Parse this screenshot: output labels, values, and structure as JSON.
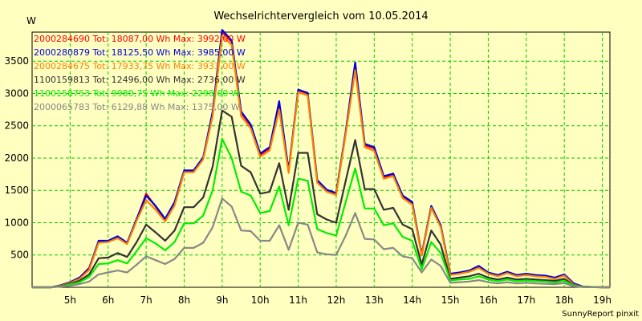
{
  "chart_data": {
    "type": "line",
    "title": "Wechselrichtervergleich vom 10.05.2014",
    "ylabel": "W",
    "xlabel": "",
    "footer": "SunnyReport pinxit",
    "grid": true,
    "legend_position": "top-left",
    "xlim": [
      4.0,
      19.2
    ],
    "ylim": [
      0,
      3950
    ],
    "x_ticks": [
      5,
      6,
      7,
      8,
      9,
      10,
      11,
      12,
      13,
      14,
      15,
      16,
      17,
      18,
      19
    ],
    "x_tick_labels": [
      "5h",
      "6h",
      "7h",
      "8h",
      "9h",
      "10h",
      "11h",
      "12h",
      "13h",
      "14h",
      "15h",
      "16h",
      "17h",
      "18h",
      "19h"
    ],
    "y_ticks": [
      500,
      1000,
      1500,
      2000,
      2500,
      3000,
      3500
    ],
    "x": [
      4.0,
      4.5,
      4.75,
      5.0,
      5.25,
      5.5,
      5.75,
      6.0,
      6.25,
      6.5,
      6.75,
      7.0,
      7.25,
      7.5,
      7.75,
      8.0,
      8.25,
      8.5,
      8.75,
      9.0,
      9.25,
      9.5,
      9.75,
      10.0,
      10.25,
      10.5,
      10.75,
      11.0,
      11.25,
      11.5,
      11.75,
      12.0,
      12.25,
      12.5,
      12.75,
      13.0,
      13.25,
      13.5,
      13.75,
      14.0,
      14.25,
      14.5,
      14.75,
      15.0,
      15.25,
      15.5,
      15.75,
      16.0,
      16.25,
      16.5,
      16.75,
      17.0,
      17.25,
      17.5,
      17.75,
      18.0,
      18.25,
      18.5,
      19.0,
      19.2
    ],
    "series": [
      {
        "name": "2000284690 Tot: 18087,00 Wh Max: 3992,00 W",
        "color": "#ff0000",
        "values": [
          0,
          0,
          30,
          80,
          150,
          300,
          700,
          710,
          780,
          680,
          1050,
          1450,
          1250,
          1050,
          1300,
          1800,
          1800,
          2000,
          2700,
          3950,
          3800,
          2700,
          2500,
          2050,
          2150,
          2800,
          1800,
          3050,
          3000,
          1650,
          1500,
          1450,
          2400,
          3400,
          2200,
          2150,
          1700,
          1750,
          1400,
          1300,
          500,
          1250,
          950,
          200,
          220,
          250,
          320,
          220,
          180,
          230,
          180,
          200,
          180,
          170,
          140,
          190,
          50,
          10,
          0,
          0
        ]
      },
      {
        "name": "2000280879 Tot: 18125,50 Wh Max: 3985,00 W",
        "color": "#0000dd",
        "values": [
          0,
          0,
          30,
          80,
          150,
          290,
          720,
          720,
          790,
          690,
          1060,
          1420,
          1260,
          1060,
          1320,
          1810,
          1810,
          2010,
          2720,
          3985,
          3820,
          2720,
          2520,
          2070,
          2170,
          2880,
          1810,
          3060,
          3010,
          1660,
          1510,
          1460,
          2410,
          3480,
          2220,
          2170,
          1720,
          1760,
          1420,
          1320,
          510,
          1260,
          960,
          210,
          230,
          260,
          330,
          230,
          190,
          240,
          190,
          210,
          190,
          180,
          150,
          200,
          60,
          10,
          0,
          0
        ]
      },
      {
        "name": "2000284675 Tot: 17933,75 Wh Max: 3933,00 W",
        "color": "#ff8000",
        "values": [
          0,
          0,
          25,
          70,
          130,
          270,
          690,
          700,
          760,
          670,
          1030,
          1350,
          1200,
          1020,
          1270,
          1780,
          1780,
          1980,
          2650,
          3890,
          3750,
          2650,
          2460,
          2020,
          2120,
          2750,
          1770,
          3020,
          2970,
          1620,
          1480,
          1430,
          2370,
          3360,
          2170,
          2110,
          1680,
          1720,
          1380,
          1280,
          490,
          1230,
          930,
          190,
          210,
          240,
          300,
          210,
          170,
          220,
          170,
          190,
          170,
          160,
          130,
          180,
          40,
          8,
          0,
          0
        ]
      },
      {
        "name": "1100159813 Tot: 12496,00 Wh Max: 2736,00 W",
        "color": "#333333",
        "values": [
          0,
          0,
          20,
          55,
          100,
          200,
          450,
          460,
          530,
          470,
          700,
          970,
          850,
          720,
          880,
          1240,
          1240,
          1390,
          1870,
          2736,
          2640,
          1880,
          1780,
          1450,
          1480,
          1920,
          1200,
          2080,
          2080,
          1130,
          1050,
          1000,
          1650,
          2280,
          1520,
          1520,
          1200,
          1230,
          970,
          900,
          350,
          880,
          660,
          130,
          150,
          170,
          210,
          150,
          120,
          150,
          120,
          130,
          120,
          110,
          100,
          130,
          30,
          5,
          0,
          0
        ]
      },
      {
        "name": "1100158753 Tot: 9980,75 Wh Max: 2298,00 W",
        "color": "#00ee00",
        "values": [
          0,
          0,
          15,
          45,
          80,
          160,
          360,
          370,
          420,
          370,
          560,
          760,
          680,
          570,
          700,
          990,
          990,
          1110,
          1500,
          2298,
          2000,
          1480,
          1420,
          1150,
          1180,
          1560,
          960,
          1680,
          1650,
          900,
          840,
          800,
          1320,
          1840,
          1220,
          1220,
          960,
          990,
          780,
          720,
          280,
          700,
          530,
          105,
          120,
          130,
          170,
          120,
          95,
          120,
          95,
          105,
          95,
          90,
          75,
          100,
          25,
          5,
          0,
          0
        ]
      },
      {
        "name": "2000065783 Tot: 6129,88 Wh Max: 1375,00 W",
        "color": "#888888",
        "values": [
          0,
          0,
          10,
          25,
          50,
          90,
          200,
          230,
          260,
          230,
          350,
          480,
          420,
          360,
          440,
          610,
          610,
          690,
          930,
          1375,
          1250,
          880,
          870,
          720,
          720,
          960,
          580,
          1000,
          970,
          540,
          510,
          500,
          800,
          1150,
          750,
          740,
          590,
          610,
          480,
          450,
          230,
          430,
          330,
          70,
          80,
          90,
          110,
          80,
          60,
          80,
          60,
          70,
          60,
          55,
          50,
          65,
          15,
          3,
          0,
          0
        ]
      }
    ]
  }
}
